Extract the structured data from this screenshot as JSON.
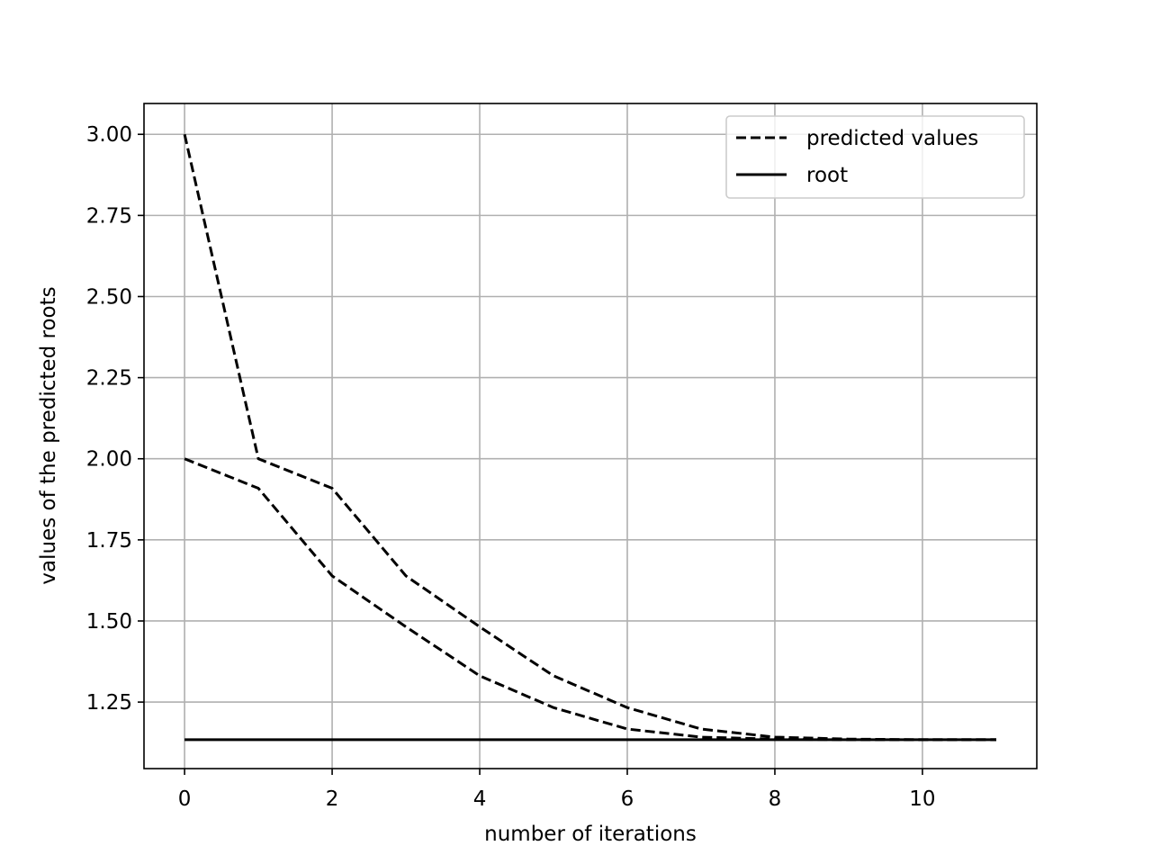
{
  "chart_data": {
    "type": "line",
    "title": "",
    "xlabel": "number of iterations",
    "ylabel": "values of the predicted roots",
    "xlim": [
      -0.55,
      11.55
    ],
    "ylim": [
      1.045,
      3.095
    ],
    "x_ticks": [
      0,
      2,
      4,
      6,
      8,
      10
    ],
    "x_tick_labels": [
      "0",
      "2",
      "4",
      "6",
      "8",
      "10"
    ],
    "y_ticks": [
      1.25,
      1.5,
      1.75,
      2.0,
      2.25,
      2.5,
      2.75,
      3.0
    ],
    "y_tick_labels": [
      "1.25",
      "1.50",
      "1.75",
      "2.00",
      "2.25",
      "2.50",
      "2.75",
      "3.00"
    ],
    "grid": true,
    "legend": {
      "placement": "upper right",
      "entries": [
        {
          "label": "predicted values",
          "style": "dashed"
        },
        {
          "label": "root",
          "style": "solid"
        }
      ]
    },
    "series": [
      {
        "name": "predicted values",
        "style": "dashed",
        "color": "#000000",
        "x": [
          0,
          1,
          2,
          3,
          4,
          5,
          6,
          7,
          8,
          9,
          10,
          11
        ],
        "y": [
          3.0,
          2.0,
          1.909,
          1.639,
          1.482,
          1.331,
          1.233,
          1.167,
          1.142,
          1.136,
          1.134,
          1.134
        ]
      },
      {
        "name": "predicted values",
        "style": "dashed",
        "color": "#000000",
        "x": [
          0,
          1,
          2,
          3,
          4,
          5,
          6,
          7,
          8,
          9,
          10,
          11
        ],
        "y": [
          2.0,
          1.909,
          1.639,
          1.482,
          1.331,
          1.233,
          1.167,
          1.142,
          1.136,
          1.134,
          1.134,
          1.134
        ]
      },
      {
        "name": "root",
        "style": "solid",
        "color": "#000000",
        "x": [
          0,
          11
        ],
        "y": [
          1.134,
          1.134
        ]
      }
    ]
  },
  "colors": {
    "line": "#000000",
    "grid": "#b0b0b0",
    "axes": "#000000",
    "background": "#ffffff"
  }
}
